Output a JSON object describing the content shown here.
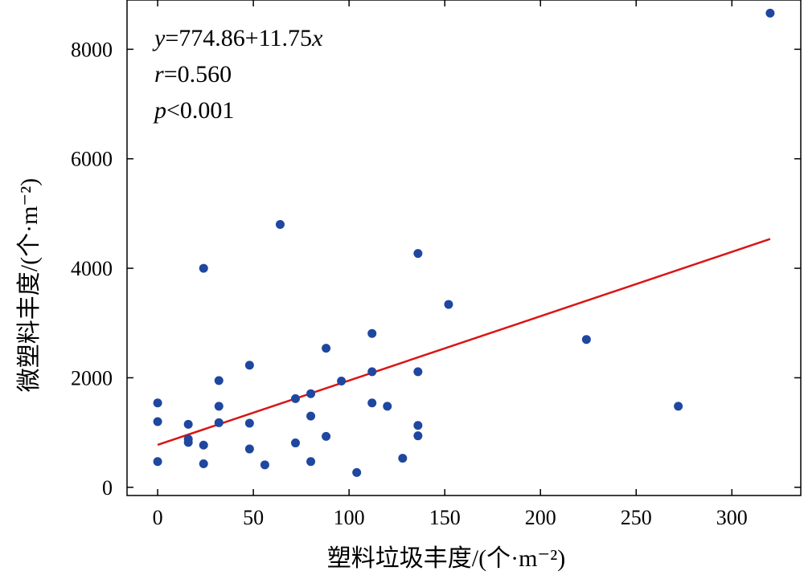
{
  "chart_data": {
    "type": "scatter",
    "xlabel": "塑料垃圾丰度/(个·m⁻²)",
    "ylabel": "微塑料丰度/(个·m⁻²)",
    "xlim": [
      -16,
      336
    ],
    "ylim": [
      -150,
      8900
    ],
    "xticks": [
      0,
      50,
      100,
      150,
      200,
      250,
      300
    ],
    "yticks": [
      0,
      2000,
      4000,
      6000,
      8000
    ],
    "xtick_labels": [
      "0",
      "50",
      "100",
      "150",
      "200",
      "250",
      "300"
    ],
    "ytick_labels": [
      "0",
      "2000",
      "4000",
      "6000",
      "8000"
    ],
    "point_color": "#1f47a0",
    "line_color": "#d91515",
    "grid": false,
    "annotations": {
      "equation": [
        "y",
        "=774.86+11.75",
        "x"
      ],
      "r": [
        "r",
        "=0.560"
      ],
      "p": [
        "p",
        "<0.001"
      ]
    },
    "fit_line": {
      "intercept": 774.86,
      "slope": 11.75,
      "x_range": [
        0,
        320
      ]
    },
    "points": [
      {
        "x": 0,
        "y": 1540
      },
      {
        "x": 0,
        "y": 1200
      },
      {
        "x": 0,
        "y": 470
      },
      {
        "x": 16,
        "y": 1150
      },
      {
        "x": 16,
        "y": 880
      },
      {
        "x": 16,
        "y": 820
      },
      {
        "x": 24,
        "y": 4000
      },
      {
        "x": 24,
        "y": 770
      },
      {
        "x": 24,
        "y": 430
      },
      {
        "x": 32,
        "y": 1950
      },
      {
        "x": 32,
        "y": 1480
      },
      {
        "x": 32,
        "y": 1180
      },
      {
        "x": 48,
        "y": 2230
      },
      {
        "x": 48,
        "y": 1170
      },
      {
        "x": 48,
        "y": 700
      },
      {
        "x": 56,
        "y": 410
      },
      {
        "x": 64,
        "y": 4800
      },
      {
        "x": 72,
        "y": 1620
      },
      {
        "x": 72,
        "y": 810
      },
      {
        "x": 80,
        "y": 1710
      },
      {
        "x": 80,
        "y": 1300
      },
      {
        "x": 80,
        "y": 470
      },
      {
        "x": 88,
        "y": 2540
      },
      {
        "x": 88,
        "y": 930
      },
      {
        "x": 96,
        "y": 1940
      },
      {
        "x": 104,
        "y": 270
      },
      {
        "x": 112,
        "y": 2810
      },
      {
        "x": 112,
        "y": 2110
      },
      {
        "x": 112,
        "y": 1540
      },
      {
        "x": 120,
        "y": 1480
      },
      {
        "x": 128,
        "y": 530
      },
      {
        "x": 136,
        "y": 4270
      },
      {
        "x": 136,
        "y": 2110
      },
      {
        "x": 136,
        "y": 1130
      },
      {
        "x": 136,
        "y": 940
      },
      {
        "x": 152,
        "y": 3340
      },
      {
        "x": 224,
        "y": 2700
      },
      {
        "x": 272,
        "y": 1480
      },
      {
        "x": 320,
        "y": 8660
      }
    ]
  }
}
